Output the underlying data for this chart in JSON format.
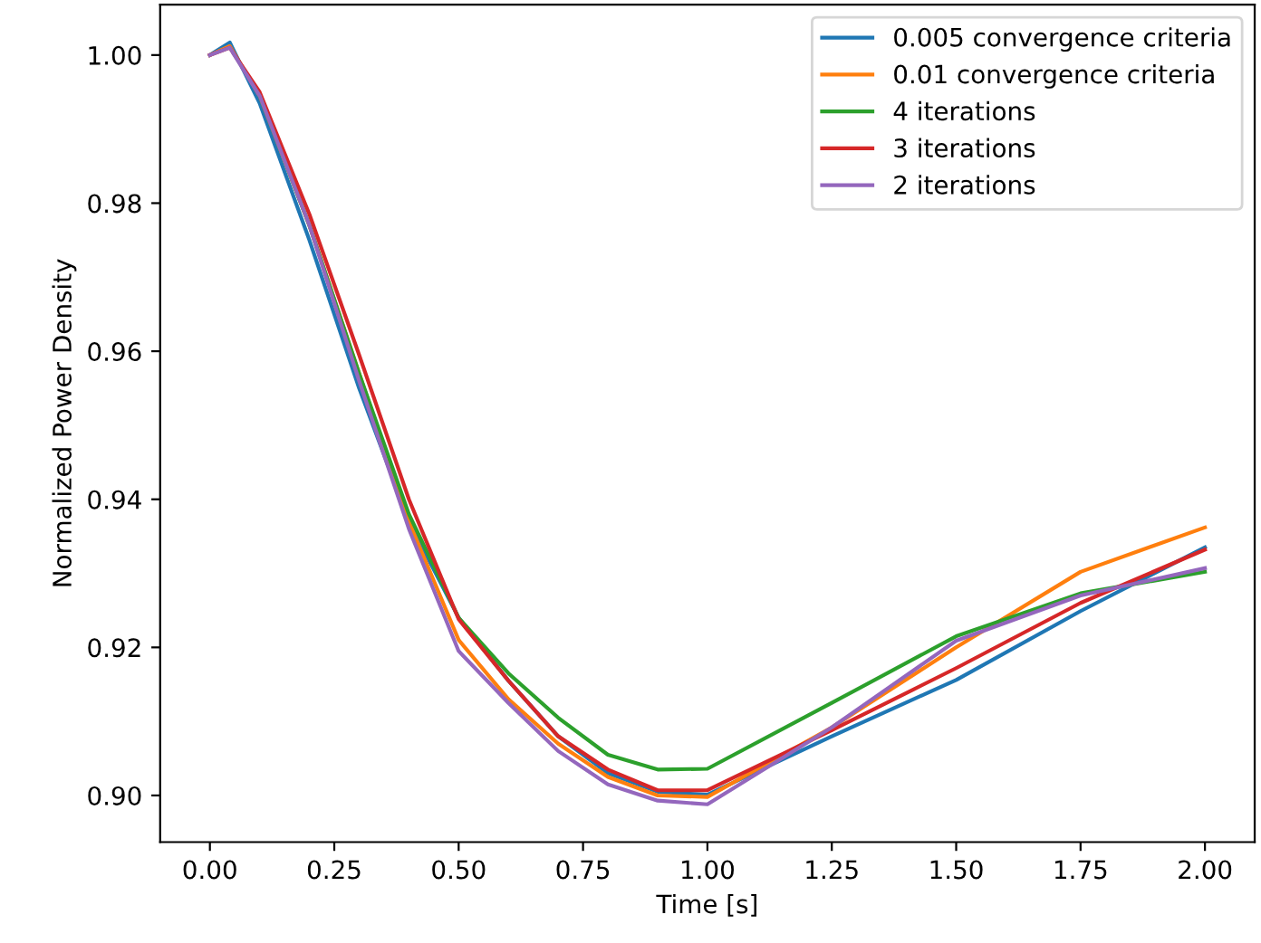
{
  "chart_data": {
    "type": "line",
    "xlabel": "Time [s]",
    "ylabel": "Normalized Power Density",
    "x": [
      0,
      0.04,
      0.1,
      0.2,
      0.3,
      0.4,
      0.5,
      0.6,
      0.7,
      0.8,
      0.9,
      1.0,
      1.25,
      1.5,
      1.75,
      2.0
    ],
    "series": [
      {
        "name": "0.005 convergence criteria",
        "color": "#1f77b4",
        "values": [
          1.0,
          1.0017,
          0.9935,
          0.975,
          0.955,
          0.937,
          0.924,
          0.9155,
          0.908,
          0.903,
          0.9005,
          0.9001,
          0.908,
          0.9156,
          0.9249,
          0.9335
        ]
      },
      {
        "name": "0.01 convergence criteria",
        "color": "#ff7f0e",
        "values": [
          1.0,
          1.0012,
          0.9945,
          0.977,
          0.957,
          0.937,
          0.921,
          0.913,
          0.907,
          0.9025,
          0.9,
          0.8998,
          0.9092,
          0.92,
          0.9302,
          0.9362
        ]
      },
      {
        "name": "4 iterations",
        "color": "#2ca02c",
        "values": [
          null,
          null,
          0.9945,
          0.977,
          0.957,
          0.938,
          0.924,
          0.9165,
          0.9105,
          0.9055,
          0.9035,
          0.9036,
          0.9125,
          0.9215,
          0.9273,
          0.9302
        ]
      },
      {
        "name": "3 iterations",
        "color": "#d62728",
        "values": [
          1.0,
          1.001,
          0.995,
          0.9785,
          0.9595,
          0.94,
          0.9238,
          0.9155,
          0.908,
          0.9035,
          0.9007,
          0.9007,
          0.9088,
          0.9172,
          0.926,
          0.9332
        ]
      },
      {
        "name": "2 iterations",
        "color": "#9467bd",
        "values": [
          1.0,
          1.001,
          0.9945,
          0.977,
          0.956,
          0.936,
          0.9195,
          0.9125,
          0.906,
          0.9015,
          0.8993,
          0.8988,
          0.9092,
          0.9209,
          0.927,
          0.9307
        ]
      }
    ],
    "xlim": [
      -0.1,
      2.1
    ],
    "xticks": [
      {
        "value": 0,
        "label": "0.00"
      },
      {
        "value": 0.25,
        "label": "0.25"
      },
      {
        "value": 0.5,
        "label": "0.50"
      },
      {
        "value": 0.75,
        "label": "0.75"
      },
      {
        "value": 1.0,
        "label": "1.00"
      },
      {
        "value": 1.25,
        "label": "1.25"
      },
      {
        "value": 1.5,
        "label": "1.50"
      },
      {
        "value": 1.75,
        "label": "1.75"
      },
      {
        "value": 2.0,
        "label": "2.00"
      }
    ],
    "ylim": [
      0.8937,
      1.0068
    ],
    "yticks": [
      {
        "value": 0.9,
        "label": "0.90"
      },
      {
        "value": 0.92,
        "label": "0.92"
      },
      {
        "value": 0.94,
        "label": "0.94"
      },
      {
        "value": 0.96,
        "label": "0.96"
      },
      {
        "value": 0.98,
        "label": "0.98"
      },
      {
        "value": 1.0,
        "label": "1.00"
      }
    ],
    "grid": false,
    "legend": "top right",
    "marker": "none",
    "line_style": "solid"
  }
}
